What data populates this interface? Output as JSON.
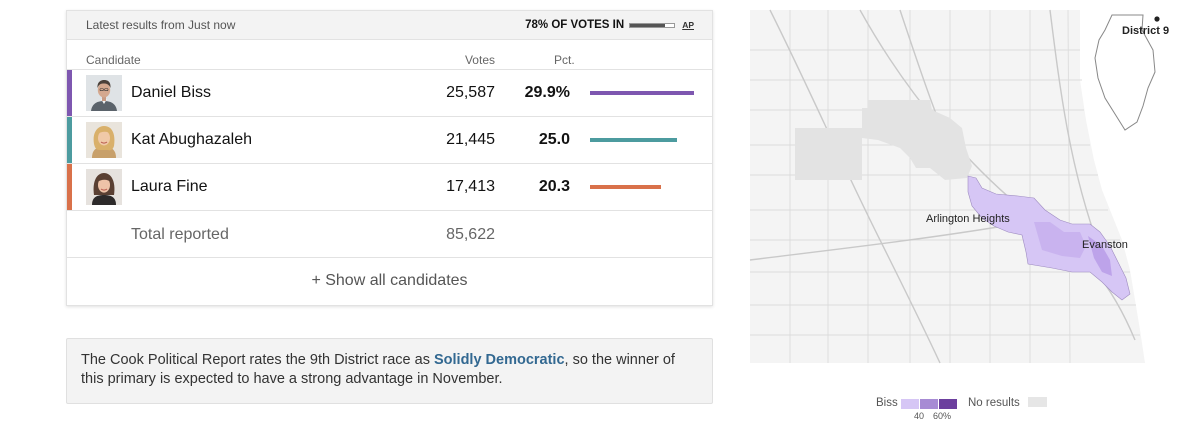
{
  "results": {
    "updated": "Latest results from Just now",
    "reporting": "78% OF VOTES IN",
    "reporting_fraction": 0.78,
    "source": "AP",
    "columns": {
      "candidate": "Candidate",
      "votes": "Votes",
      "pct": "Pct."
    },
    "candidates": [
      {
        "name": "Daniel Biss",
        "votes": "25,587",
        "pct": "29.9%",
        "pct_value": 29.9,
        "color": "#7e57b0"
      },
      {
        "name": "Kat Abughazaleh",
        "votes": "21,445",
        "pct": "25.0",
        "pct_value": 25.0,
        "color": "#4c9b9f"
      },
      {
        "name": "Laura Fine",
        "votes": "17,413",
        "pct": "20.3",
        "pct_value": 20.3,
        "color": "#d9714a"
      }
    ],
    "total": {
      "label": "Total reported",
      "votes": "85,622"
    },
    "show_all": "+ Show all candidates"
  },
  "note": {
    "before": "The Cook Political Report rates the 9th District race as ",
    "link": "Solidly Democratic",
    "after": ", so the winner of this primary is expected to have a strong advantage in November."
  },
  "map": {
    "labels": {
      "district": "District 9",
      "place1": "Arlington Heights",
      "place2": "Evanston"
    },
    "colors": {
      "biss_light": "#d6c6f5",
      "biss_mid": "#a78bd4",
      "biss_dark": "#6c3f9e",
      "no_results": "#e6e6e6"
    }
  },
  "legend": {
    "candidate": "Biss",
    "tick1": "40",
    "tick2": "60%",
    "no_results": "No results"
  }
}
